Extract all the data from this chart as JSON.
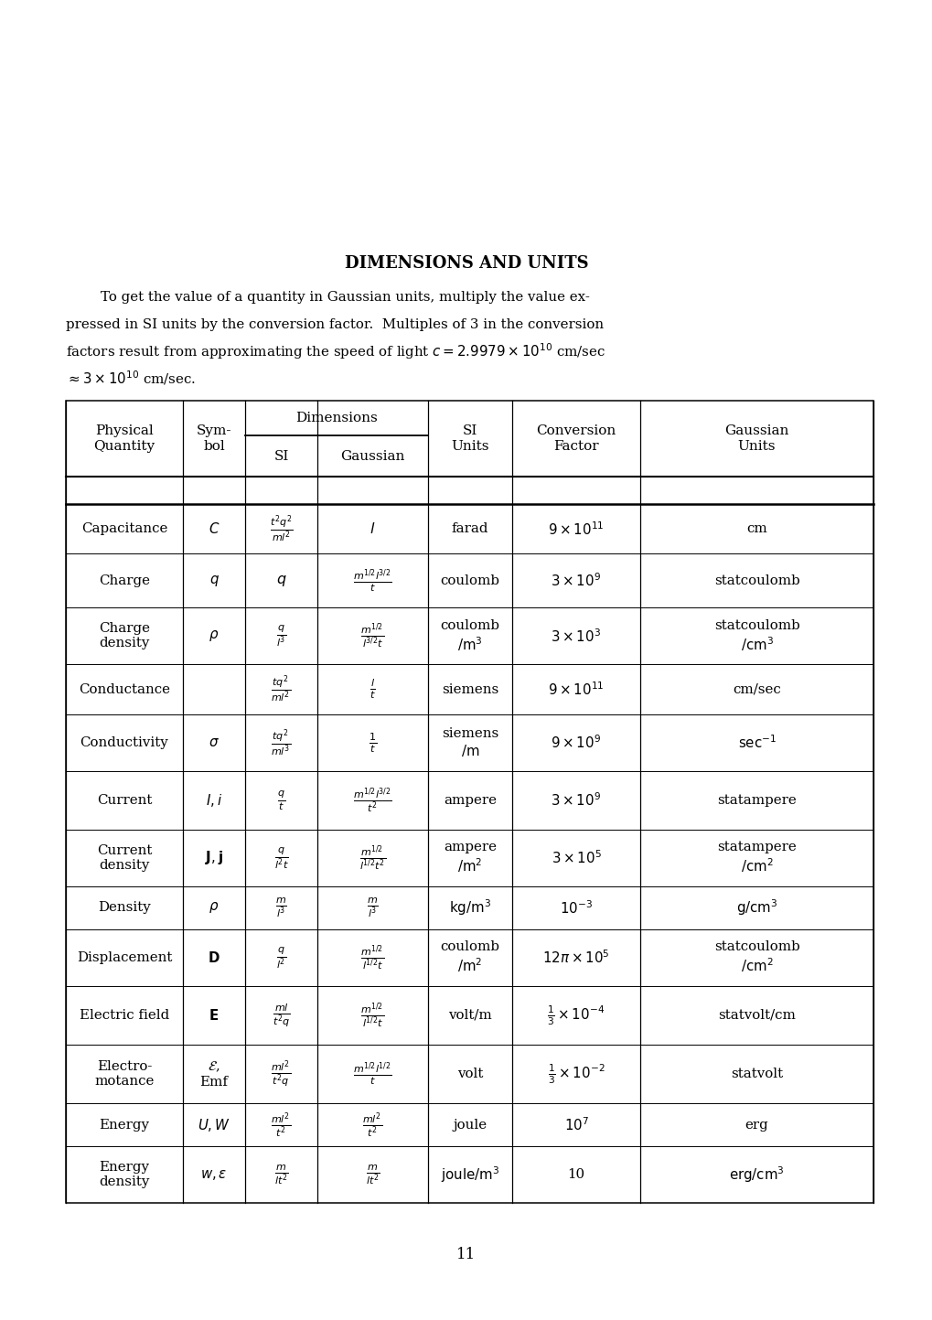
{
  "title": "DIMENSIONS AND UNITS",
  "subtitle_lines": [
    "        To get the value of a quantity in Gaussian units, multiply the value ex-",
    "pressed in SI units by the conversion factor.  Multiples of 3 in the conversion",
    "factors result from approximating the speed of light $c = 2.9979 \\times 10^{10}$ cm/sec",
    "$\\approx 3 \\times 10^{10}$ cm/sec."
  ],
  "rows": [
    {
      "quantity": "Capacitance",
      "symbol": "$C$",
      "si_dim": "$\\frac{t^2q^2}{ml^2}$",
      "gauss_dim": "$l$",
      "si_units": "farad",
      "conv_factor": "$9 \\times 10^{11}$",
      "gauss_units": "cm"
    },
    {
      "quantity": "Charge",
      "symbol": "$q$",
      "si_dim": "$q$",
      "gauss_dim": "$\\frac{m^{1/2}l^{3/2}}{t}$",
      "si_units": "coulomb",
      "conv_factor": "$3 \\times 10^{9}$",
      "gauss_units": "statcoulomb"
    },
    {
      "quantity": "Charge\ndensity",
      "symbol": "$\\rho$",
      "si_dim": "$\\frac{q}{l^3}$",
      "gauss_dim": "$\\frac{m^{1/2}}{l^{3/2}t}$",
      "si_units": "coulomb\n$/\\mathrm{m}^3$",
      "conv_factor": "$3 \\times 10^{3}$",
      "gauss_units": "statcoulomb\n$/\\mathrm{cm}^3$"
    },
    {
      "quantity": "Conductance",
      "symbol": "",
      "si_dim": "$\\frac{tq^2}{ml^2}$",
      "gauss_dim": "$\\frac{l}{t}$",
      "si_units": "siemens",
      "conv_factor": "$9 \\times 10^{11}$",
      "gauss_units": "cm/sec"
    },
    {
      "quantity": "Conductivity",
      "symbol": "$\\sigma$",
      "si_dim": "$\\frac{tq^2}{ml^3}$",
      "gauss_dim": "$\\frac{1}{t}$",
      "si_units": "siemens\n$/\\mathrm{m}$",
      "conv_factor": "$9 \\times 10^{9}$",
      "gauss_units": "$\\mathrm{sec}^{-1}$"
    },
    {
      "quantity": "Current",
      "symbol": "$I, i$",
      "si_dim": "$\\frac{q}{t}$",
      "gauss_dim": "$\\frac{m^{1/2}l^{3/2}}{t^2}$",
      "si_units": "ampere",
      "conv_factor": "$3 \\times 10^{9}$",
      "gauss_units": "statampere"
    },
    {
      "quantity": "Current\ndensity",
      "symbol": "$\\mathbf{J}, \\mathbf{j}$",
      "si_dim": "$\\frac{q}{l^2t}$",
      "gauss_dim": "$\\frac{m^{1/2}}{l^{1/2}t^2}$",
      "si_units": "ampere\n$/\\mathrm{m}^2$",
      "conv_factor": "$3 \\times 10^{5}$",
      "gauss_units": "statampere\n$/\\mathrm{cm}^2$"
    },
    {
      "quantity": "Density",
      "symbol": "$\\rho$",
      "si_dim": "$\\frac{m}{l^3}$",
      "gauss_dim": "$\\frac{m}{l^3}$",
      "si_units": "$\\mathrm{kg/m}^3$",
      "conv_factor": "$10^{-3}$",
      "gauss_units": "$\\mathrm{g/cm}^3$"
    },
    {
      "quantity": "Displacement",
      "symbol": "$\\mathbf{D}$",
      "si_dim": "$\\frac{q}{l^2}$",
      "gauss_dim": "$\\frac{m^{1/2}}{l^{1/2}t}$",
      "si_units": "coulomb\n$/\\mathrm{m}^2$",
      "conv_factor": "$12\\pi \\times 10^{5}$",
      "gauss_units": "statcoulomb\n$/\\mathrm{cm}^2$"
    },
    {
      "quantity": "Electric field",
      "symbol": "$\\mathbf{E}$",
      "si_dim": "$\\frac{ml}{t^2q}$",
      "gauss_dim": "$\\frac{m^{1/2}}{l^{1/2}t}$",
      "si_units": "volt/m",
      "conv_factor": "$\\frac{1}{3} \\times 10^{-4}$",
      "gauss_units": "statvolt/cm"
    },
    {
      "quantity": "Electro-\nmotance",
      "symbol": "$\\mathcal{E}$,\nEmf",
      "si_dim": "$\\frac{ml^2}{t^2q}$",
      "gauss_dim": "$\\frac{m^{1/2}l^{1/2}}{t}$",
      "si_units": "volt",
      "conv_factor": "$\\frac{1}{3} \\times 10^{-2}$",
      "gauss_units": "statvolt"
    },
    {
      "quantity": "Energy",
      "symbol": "$U, W$",
      "si_dim": "$\\frac{ml^2}{t^2}$",
      "gauss_dim": "$\\frac{ml^2}{t^2}$",
      "si_units": "joule",
      "conv_factor": "$10^{7}$",
      "gauss_units": "erg"
    },
    {
      "quantity": "Energy\ndensity",
      "symbol": "$w, \\epsilon$",
      "si_dim": "$\\frac{m}{lt^2}$",
      "gauss_dim": "$\\frac{m}{lt^2}$",
      "si_units": "$\\mathrm{joule/m}^3$",
      "conv_factor": "10",
      "gauss_units": "$\\mathrm{erg/cm}^3$"
    }
  ],
  "page_number": "11"
}
